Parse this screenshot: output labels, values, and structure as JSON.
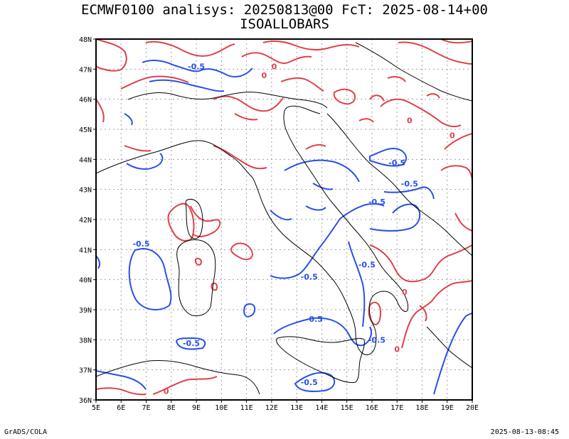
{
  "title": {
    "line1": "ECMWF0100 analisys: 20250813@00 FcT: 2025-08-14+00",
    "line2": "ISOALLOBARS"
  },
  "footer": {
    "left": "GrADS/COLA",
    "right": "2025-08-13-08:45"
  },
  "map": {
    "lon_range": [
      5,
      20
    ],
    "lat_range": [
      36,
      48
    ],
    "grid": "dotted",
    "x_ticks": [
      "5E",
      "6E",
      "7E",
      "8E",
      "9E",
      "10E",
      "11E",
      "12E",
      "13E",
      "14E",
      "15E",
      "16E",
      "17E",
      "18E",
      "19E",
      "20E"
    ],
    "y_ticks": [
      "36N",
      "37N",
      "38N",
      "39N",
      "40N",
      "41N",
      "42N",
      "43N",
      "44N",
      "45N",
      "46N",
      "47N",
      "48N"
    ],
    "colors": {
      "positive_contour": "#e0404a",
      "negative_contour": "#2850e6",
      "coastline": "#000000",
      "grid": "#a0a0a0"
    },
    "contour_labels": [
      {
        "text": "-0.5",
        "lon": 9.0,
        "lat": 47.0,
        "color": "negative"
      },
      {
        "text": "-0.5",
        "lon": 6.8,
        "lat": 41.1,
        "color": "negative"
      },
      {
        "text": "-0.5",
        "lon": 16.2,
        "lat": 42.5,
        "color": "negative"
      },
      {
        "text": "-0.5",
        "lon": 17.5,
        "lat": 43.1,
        "color": "negative"
      },
      {
        "text": "-0.5",
        "lon": 17.0,
        "lat": 43.8,
        "color": "negative"
      },
      {
        "text": "-0.5",
        "lon": 15.8,
        "lat": 40.4,
        "color": "negative"
      },
      {
        "text": "-0.5",
        "lon": 13.5,
        "lat": 40.0,
        "color": "negative"
      },
      {
        "text": "-0.5",
        "lon": 13.7,
        "lat": 38.6,
        "color": "negative"
      },
      {
        "text": "-0.5",
        "lon": 8.8,
        "lat": 37.8,
        "color": "negative"
      },
      {
        "text": "-0.5",
        "lon": 16.2,
        "lat": 37.9,
        "color": "negative"
      },
      {
        "text": "-0.5",
        "lon": 13.5,
        "lat": 36.5,
        "color": "negative"
      },
      {
        "text": "0",
        "lon": 11.7,
        "lat": 46.7,
        "color": "positive"
      },
      {
        "text": "0",
        "lon": 12.1,
        "lat": 47.0,
        "color": "positive"
      },
      {
        "text": "0",
        "lon": 17.5,
        "lat": 45.2,
        "color": "positive"
      },
      {
        "text": "0",
        "lon": 19.2,
        "lat": 44.7,
        "color": "positive"
      },
      {
        "text": "0",
        "lon": 17.3,
        "lat": 39.5,
        "color": "positive"
      },
      {
        "text": "0",
        "lon": 17.0,
        "lat": 37.6,
        "color": "positive"
      },
      {
        "text": "0",
        "lon": 7.8,
        "lat": 36.2,
        "color": "positive"
      }
    ]
  }
}
